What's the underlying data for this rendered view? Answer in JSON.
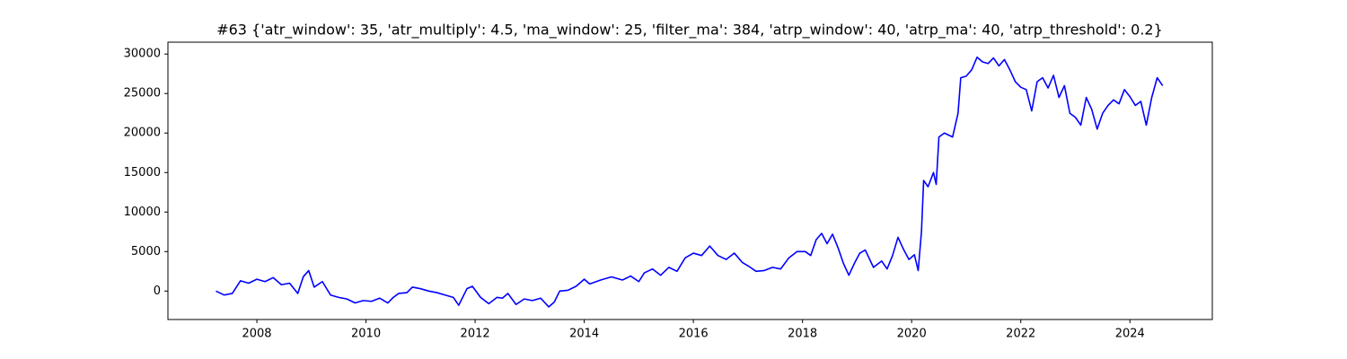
{
  "chart_data": {
    "type": "line",
    "title": "#63 {'atr_window': 35, 'atr_multiply': 4.5, 'ma_window': 25, 'filter_ma': 384, 'atrp_window': 40, 'atrp_ma': 40, 'atrp_threshold': 0.2}",
    "xlim": [
      2006.37,
      2025.51
    ],
    "xticks": [
      2008,
      2010,
      2012,
      2014,
      2016,
      2018,
      2020,
      2022,
      2024
    ],
    "ylim": [
      -3600,
      31500
    ],
    "yticks": [
      0,
      5000,
      10000,
      15000,
      20000,
      25000,
      30000
    ],
    "grid": false,
    "series": [
      {
        "color": "#0000ff",
        "x": [
          2007.25,
          2007.4,
          2007.55,
          2007.7,
          2007.85,
          2008.0,
          2008.15,
          2008.3,
          2008.45,
          2008.6,
          2008.75,
          2008.85,
          2008.95,
          2009.05,
          2009.2,
          2009.35,
          2009.5,
          2009.65,
          2009.8,
          2009.95,
          2010.1,
          2010.25,
          2010.4,
          2010.5,
          2010.6,
          2010.75,
          2010.85,
          2011.0,
          2011.15,
          2011.3,
          2011.45,
          2011.6,
          2011.7,
          2011.85,
          2011.95,
          2012.1,
          2012.25,
          2012.4,
          2012.5,
          2012.6,
          2012.75,
          2012.9,
          2013.05,
          2013.2,
          2013.35,
          2013.45,
          2013.55,
          2013.7,
          2013.85,
          2014.0,
          2014.1,
          2014.3,
          2014.5,
          2014.7,
          2014.85,
          2015.0,
          2015.1,
          2015.25,
          2015.4,
          2015.55,
          2015.7,
          2015.85,
          2016.0,
          2016.15,
          2016.3,
          2016.45,
          2016.6,
          2016.75,
          2016.9,
          2017.0,
          2017.15,
          2017.3,
          2017.45,
          2017.6,
          2017.75,
          2017.9,
          2018.05,
          2018.15,
          2018.25,
          2018.35,
          2018.45,
          2018.55,
          2018.65,
          2018.75,
          2018.85,
          2018.95,
          2019.05,
          2019.15,
          2019.3,
          2019.45,
          2019.55,
          2019.65,
          2019.75,
          2019.85,
          2019.95,
          2020.05,
          2020.12,
          2020.18,
          2020.22,
          2020.3,
          2020.4,
          2020.45,
          2020.5,
          2020.6,
          2020.75,
          2020.85,
          2020.9,
          2021.0,
          2021.1,
          2021.2,
          2021.3,
          2021.4,
          2021.5,
          2021.6,
          2021.7,
          2021.8,
          2021.9,
          2022.0,
          2022.1,
          2022.2,
          2022.3,
          2022.4,
          2022.5,
          2022.6,
          2022.7,
          2022.8,
          2022.9,
          2023.0,
          2023.1,
          2023.2,
          2023.3,
          2023.4,
          2023.5,
          2023.6,
          2023.7,
          2023.8,
          2023.9,
          2024.0,
          2024.1,
          2024.2,
          2024.3,
          2024.4,
          2024.5,
          2024.6
        ],
        "values": [
          0,
          -500,
          -300,
          1300,
          1000,
          1500,
          1200,
          1700,
          800,
          1000,
          -300,
          1800,
          2600,
          500,
          1200,
          -500,
          -800,
          -1000,
          -1500,
          -1200,
          -1300,
          -900,
          -1500,
          -800,
          -300,
          -200,
          500,
          300,
          0,
          -200,
          -500,
          -800,
          -1800,
          300,
          600,
          -800,
          -1600,
          -800,
          -900,
          -300,
          -1700,
          -1000,
          -1200,
          -900,
          -2000,
          -1400,
          0,
          100,
          600,
          1500,
          900,
          1400,
          1800,
          1400,
          1900,
          1200,
          2300,
          2800,
          2000,
          3000,
          2500,
          4200,
          4800,
          4500,
          5700,
          4500,
          4000,
          4800,
          3600,
          3200,
          2500,
          2600,
          3000,
          2800,
          4200,
          5000,
          5000,
          4500,
          6500,
          7300,
          6000,
          7200,
          5500,
          3500,
          2000,
          3500,
          4800,
          5200,
          3000,
          3800,
          2800,
          4500,
          6800,
          5300,
          4000,
          4600,
          2600,
          7500,
          14000,
          13200,
          15000,
          13500,
          19500,
          20000,
          19500,
          22500,
          27000,
          27200,
          28000,
          29600,
          29000,
          28800,
          29500,
          28500,
          29300,
          28000,
          26500,
          25800,
          25500,
          22800,
          26500,
          27000,
          25700,
          27300,
          24500,
          26000,
          22500,
          22000,
          21000,
          24500,
          23000,
          20500,
          22500,
          23500,
          24200,
          23700,
          25500,
          24600,
          23500,
          24000,
          21000,
          24500,
          27000,
          26000
        ]
      }
    ]
  }
}
